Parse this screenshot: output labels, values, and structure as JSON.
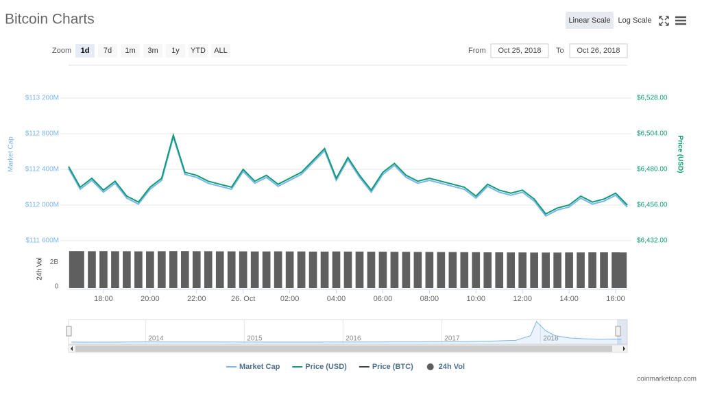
{
  "header": {
    "title": "Bitcoin Charts",
    "scale_buttons": [
      "Linear Scale",
      "Log Scale"
    ],
    "active_scale": 0
  },
  "zoom": {
    "label": "Zoom",
    "buttons": [
      "1d",
      "7d",
      "1m",
      "3m",
      "1y",
      "YTD",
      "ALL"
    ],
    "active": 0
  },
  "range": {
    "from_label": "From",
    "from": "Oct 25, 2018",
    "to_label": "To",
    "to": "Oct 26, 2018"
  },
  "chart_data": [
    {
      "type": "line",
      "y_label": "Market Cap",
      "y2_label": "Price (USD)",
      "grid": true,
      "x": [
        "2018-10-25T16:30",
        "2018-10-25T17:00",
        "2018-10-25T17:30",
        "2018-10-25T18:00",
        "2018-10-25T18:30",
        "2018-10-25T19:00",
        "2018-10-25T19:30",
        "2018-10-25T20:00",
        "2018-10-25T20:30",
        "2018-10-25T21:00",
        "2018-10-25T21:30",
        "2018-10-25T22:00",
        "2018-10-25T22:30",
        "2018-10-25T23:00",
        "2018-10-25T23:30",
        "2018-10-26T00:00",
        "2018-10-26T00:30",
        "2018-10-26T01:00",
        "2018-10-26T01:30",
        "2018-10-26T02:00",
        "2018-10-26T02:30",
        "2018-10-26T03:00",
        "2018-10-26T03:30",
        "2018-10-26T04:00",
        "2018-10-26T04:30",
        "2018-10-26T05:00",
        "2018-10-26T05:30",
        "2018-10-26T06:00",
        "2018-10-26T06:30",
        "2018-10-26T07:00",
        "2018-10-26T07:30",
        "2018-10-26T08:00",
        "2018-10-26T08:30",
        "2018-10-26T09:00",
        "2018-10-26T09:30",
        "2018-10-26T10:00",
        "2018-10-26T10:30",
        "2018-10-26T11:00",
        "2018-10-26T11:30",
        "2018-10-26T12:00",
        "2018-10-26T12:30",
        "2018-10-26T13:00",
        "2018-10-26T13:30",
        "2018-10-26T14:00",
        "2018-10-26T14:30",
        "2018-10-26T15:00",
        "2018-10-26T15:30",
        "2018-10-26T16:00",
        "2018-10-26T16:30"
      ],
      "xlim": [
        "2018-10-25T16:30",
        "2018-10-26T16:30"
      ],
      "xticks": [
        {
          "value": "2018-10-25T18:00",
          "label": "18:00"
        },
        {
          "value": "2018-10-25T20:00",
          "label": "20:00"
        },
        {
          "value": "2018-10-25T22:00",
          "label": "22:00"
        },
        {
          "value": "2018-10-26T00:00",
          "label": "26. Oct"
        },
        {
          "value": "2018-10-26T02:00",
          "label": "02:00"
        },
        {
          "value": "2018-10-26T04:00",
          "label": "04:00"
        },
        {
          "value": "2018-10-26T06:00",
          "label": "06:00"
        },
        {
          "value": "2018-10-26T08:00",
          "label": "08:00"
        },
        {
          "value": "2018-10-26T10:00",
          "label": "10:00"
        },
        {
          "value": "2018-10-26T12:00",
          "label": "12:00"
        },
        {
          "value": "2018-10-26T14:00",
          "label": "14:00"
        },
        {
          "value": "2018-10-26T16:00",
          "label": "16:00"
        }
      ],
      "ylim": [
        111600,
        113200
      ],
      "yticks": [
        {
          "value": 111600,
          "label": "$111 600M"
        },
        {
          "value": 112000,
          "label": "$112 000M"
        },
        {
          "value": 112400,
          "label": "$112 400M"
        },
        {
          "value": 112800,
          "label": "$112 800M"
        },
        {
          "value": 113200,
          "label": "$113 200M"
        }
      ],
      "y2lim": [
        6432,
        6528
      ],
      "y2ticks": [
        {
          "value": 6432,
          "label": "$6,432.00"
        },
        {
          "value": 6456,
          "label": "$6,456.00"
        },
        {
          "value": 6480,
          "label": "$6,480.00"
        },
        {
          "value": 6504,
          "label": "$6,504.00"
        },
        {
          "value": 6528,
          "label": "$6,528.00"
        }
      ],
      "series": [
        {
          "name": "Market Cap",
          "color": "#7cb5ec",
          "values": [
            112410,
            112177,
            112277,
            112144,
            112244,
            112077,
            112010,
            112177,
            112277,
            112760,
            112344,
            112310,
            112244,
            112210,
            112177,
            112377,
            112244,
            112310,
            112210,
            112277,
            112344,
            112477,
            112610,
            112277,
            112510,
            112310,
            112144,
            112344,
            112444,
            112310,
            112244,
            112277,
            112244,
            112210,
            112177,
            112077,
            112210,
            112144,
            112110,
            112144,
            112044,
            111877,
            111944,
            111977,
            112077,
            112010,
            112044,
            112110,
            111977
          ]
        },
        {
          "name": "Price (USD)",
          "color": "#0f9b75",
          "axis": "y2",
          "values": [
            6482,
            6468,
            6474,
            6466,
            6472,
            6462,
            6458,
            6468,
            6474,
            6503,
            6478,
            6476,
            6472,
            6470,
            6468,
            6480,
            6472,
            6476,
            6470,
            6474,
            6478,
            6486,
            6494,
            6474,
            6488,
            6476,
            6466,
            6478,
            6484,
            6476,
            6472,
            6474,
            6472,
            6470,
            6468,
            6462,
            6470,
            6466,
            6464,
            6466,
            6460,
            6450,
            6454,
            6456,
            6462,
            6458,
            6460,
            6464,
            6456
          ]
        },
        {
          "name": "Price (BTC)",
          "color": "#434348",
          "visible": false
        }
      ]
    },
    {
      "type": "bar",
      "y_label": "24h Vol",
      "ylim": [
        0,
        3.2
      ],
      "yticks": [
        0,
        {
          "value": 2,
          "label": "2B"
        }
      ],
      "series": [
        {
          "name": "24h Vol",
          "color": "#5f5f5f",
          "values": [
            3.02,
            3.02,
            3.01,
            3.02,
            3.01,
            3.01,
            3.0,
            3.0,
            3.01,
            3.02,
            3.02,
            3.01,
            3.01,
            3.0,
            3.0,
            3.0,
            2.99,
            2.99,
            3.0,
            2.99,
            2.99,
            2.98,
            2.98,
            2.99,
            2.98,
            2.98,
            2.97,
            2.97,
            2.96,
            2.96,
            2.95,
            2.95,
            2.94,
            2.94,
            2.93,
            2.93,
            2.92,
            2.92,
            2.91,
            2.91,
            2.9,
            2.9,
            2.9,
            2.91,
            2.91,
            2.92,
            2.92,
            2.92,
            2.91
          ]
        }
      ]
    },
    {
      "type": "area",
      "color": "#7cb5ec",
      "x": [
        2013.25,
        2013.5,
        2013.75,
        2014,
        2014.25,
        2014.5,
        2014.75,
        2015,
        2015.25,
        2015.5,
        2015.75,
        2016,
        2016.25,
        2016.5,
        2016.75,
        2017,
        2017.25,
        2017.5,
        2017.75,
        2017.9,
        2017.96,
        2018.05,
        2018.15,
        2018.3,
        2018.45,
        2018.6,
        2018.75,
        2018.82
      ],
      "values": [
        1500,
        1000,
        2000,
        10000,
        6000,
        7000,
        5000,
        4000,
        3500,
        4000,
        3500,
        6500,
        6500,
        10000,
        10000,
        15000,
        20000,
        40000,
        70000,
        250000,
        800000,
        450000,
        250000,
        160000,
        130000,
        110000,
        120000,
        112000
      ],
      "xlim": [
        2013.22,
        2018.88
      ],
      "xticks": [
        2014,
        2015,
        2016,
        2017,
        2018
      ]
    }
  ],
  "credit": "coinmarketcap.com"
}
